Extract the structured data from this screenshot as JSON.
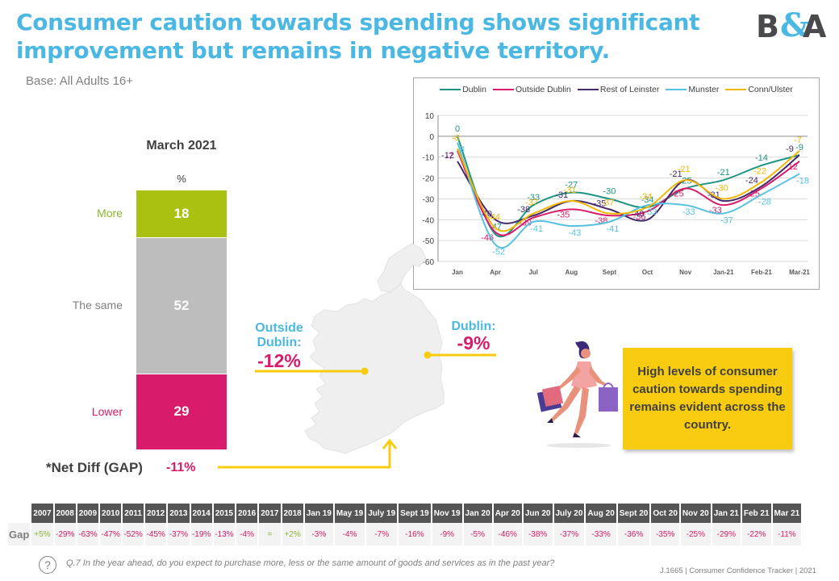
{
  "title": "Consumer caution towards spending shows significant improvement but remains in negative territory.",
  "base": "Base: All Adults 16+",
  "logo": {
    "b": "B",
    "amp": "&",
    "a": "A"
  },
  "bar": {
    "heading": "March 2021",
    "unit": "%",
    "segments": [
      {
        "label": "More",
        "value": 18,
        "color": "#a9c212",
        "label_color": "#8bb72f"
      },
      {
        "label": "The same",
        "value": 52,
        "color": "#bdbdbd",
        "label_color": "#808080"
      },
      {
        "label": "Lower",
        "value": 29,
        "color": "#d81b6a",
        "label_color": "#d81b6a"
      }
    ],
    "net_label": "*Net Diff (GAP)",
    "net_value": "-11%"
  },
  "map": {
    "outside_dublin": {
      "title": "Outside Dublin:",
      "value": "-12%"
    },
    "dublin": {
      "title": "Dublin:",
      "value": "-9%"
    }
  },
  "message": "High levels of consumer caution towards spending remains evident across the country.",
  "chart_data": {
    "type": "line",
    "title": "",
    "xlabel": "",
    "ylabel": "",
    "x": [
      "Jan",
      "Apr",
      "Jul",
      "Aug",
      "Sept",
      "Oct",
      "Nov",
      "Jan-21",
      "Feb-21",
      "Mar-21"
    ],
    "ylim": [
      -60,
      10
    ],
    "yticks": [
      10,
      0,
      -10,
      -20,
      -30,
      -40,
      -50,
      -60
    ],
    "grid": true,
    "legend": "top",
    "smooth": true,
    "series": [
      {
        "name": "Dublin",
        "color": "#1f9483",
        "values": [
          0,
          -47,
          -33,
          -27,
          -30,
          -34,
          -25,
          -21,
          -14,
          -9
        ]
      },
      {
        "name": "Outside Dublin",
        "color": "#d81b6a",
        "values": [
          -7,
          -46,
          -39,
          -35,
          -38,
          -36,
          -25,
          -33,
          -25,
          -12
        ]
      },
      {
        "name": "Rest of Leinster",
        "color": "#452a6b",
        "values": [
          -12,
          -40,
          -38,
          -31,
          -35,
          -40,
          -21,
          -31,
          -24,
          -9
        ]
      },
      {
        "name": "Munster",
        "color": "#58c1e2",
        "values": [
          -3,
          -52,
          -41,
          -43,
          -41,
          -33,
          -33,
          -37,
          -28,
          -18
        ]
      },
      {
        "name": "Conn/Ulster",
        "color": "#f2b705",
        "values": [
          -6,
          -44,
          -37,
          -31,
          -37,
          -34,
          -21,
          -30,
          -22,
          -7
        ]
      }
    ]
  },
  "gap_table": {
    "row_label": "Gap",
    "columns": [
      "2007",
      "2008",
      "2009",
      "2010",
      "2011",
      "2012",
      "2013",
      "2014",
      "2015",
      "2016",
      "2017",
      "2018",
      "Jan 19",
      "May 19",
      "July 19",
      "Sept 19",
      "Nov 19",
      "Jan 20",
      "Apr 20",
      "Jun 20",
      "July 20",
      "Aug 20",
      "Sept 20",
      "Oct 20",
      "Nov 20",
      "Jan 21",
      "Feb 21",
      "Mar 21"
    ],
    "values": [
      "+5%",
      "-29%",
      "-63%",
      "-47%",
      "-52%",
      "-45%",
      "-37%",
      "-19%",
      "-13%",
      "-4%",
      "=",
      "+2%",
      "-3%",
      "-4%",
      "-7%",
      "-16%",
      "-9%",
      "-5%",
      "-46%",
      "-38%",
      "-37%",
      "-33%",
      "-36%",
      "-35%",
      "-25%",
      "-29%",
      "-22%",
      "-11%"
    ]
  },
  "question_icon": "question-circle-icon",
  "question_mark": "?",
  "question": "Q.7 In the year ahead, do you expect to purchase more, less or the same amount of goods and services as in the past year?",
  "footer": "J.1665 | Consumer Confidence Tracker | 2021"
}
